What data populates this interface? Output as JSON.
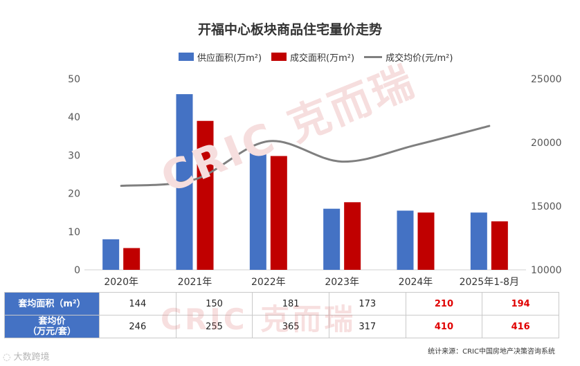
{
  "chart_data": {
    "type": "bar",
    "title": "开福中心板块商品住宅量价走势",
    "categories": [
      "2020年",
      "2021年",
      "2022年",
      "2023年",
      "2024年",
      "2025年1-8月"
    ],
    "series": [
      {
        "name": "供应面积(万m²)",
        "kind": "bar",
        "axis": "left",
        "color": "#4472c4",
        "values": [
          8,
          46,
          31,
          16,
          15.5,
          15
        ]
      },
      {
        "name": "成交面积(万m²)",
        "kind": "bar",
        "axis": "left",
        "color": "#c00000",
        "values": [
          5.7,
          39,
          29.8,
          17.7,
          15,
          12.7
        ]
      },
      {
        "name": "成交均价(元/m²)",
        "kind": "line",
        "axis": "right",
        "color": "#7f7f7f",
        "values": [
          16600,
          17100,
          20100,
          18500,
          19800,
          21300
        ]
      }
    ],
    "y_left": {
      "min": 0,
      "max": 50,
      "ticks": [
        0,
        10,
        20,
        30,
        40,
        50
      ]
    },
    "y_right": {
      "min": 10000,
      "max": 25000,
      "ticks": [
        10000,
        15000,
        20000,
        25000
      ]
    },
    "legend_position": "top",
    "grid": false
  },
  "table": {
    "rows": [
      {
        "label": "套均面积（m²）",
        "values": [
          "144",
          "150",
          "181",
          "173",
          "210",
          "194"
        ],
        "highlight": [
          false,
          false,
          false,
          false,
          true,
          true
        ]
      },
      {
        "label": "套均价\n（万元/套）",
        "values": [
          "246",
          "255",
          "365",
          "317",
          "410",
          "416"
        ],
        "highlight": [
          false,
          false,
          false,
          false,
          true,
          true
        ]
      }
    ]
  },
  "source": "统计来源：CRIC中国房地产决策咨询系统",
  "watermark": {
    "latin": "CRIC",
    "cn": "克而瑞"
  },
  "corner_mark": "大数跨境"
}
